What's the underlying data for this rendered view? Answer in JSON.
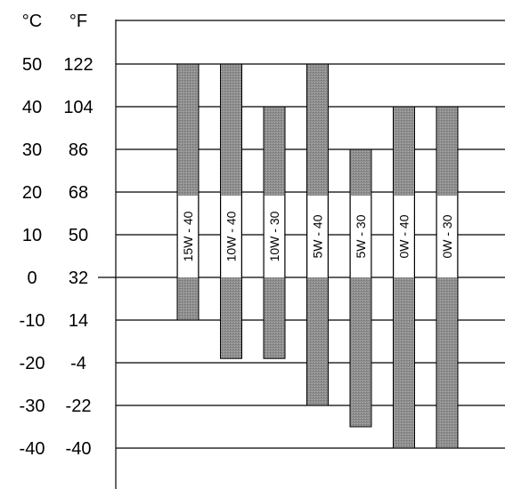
{
  "chart_data": {
    "type": "bar",
    "title": "",
    "xlabel": "",
    "ylabel": "",
    "units": {
      "celsius": "°C",
      "fahrenheit": "°F"
    },
    "ylim": [
      -50,
      60
    ],
    "y_ticks_c": [
      "50",
      "40",
      "30",
      "20",
      "10",
      "0",
      "-10",
      "-20",
      "-30",
      "-40"
    ],
    "y_ticks_f": [
      "122",
      "104",
      "86",
      "68",
      "50",
      "32",
      "14",
      "-4",
      "-22",
      "-40"
    ],
    "grid": "horizontal lines at each 10 °C",
    "categories": [
      "15W - 40",
      "10W - 40",
      "10W - 30",
      "5W - 40",
      "5W - 30",
      "0W - 40",
      "0W - 30"
    ],
    "series": [
      {
        "low": [
          -10,
          -19,
          -19,
          -30,
          -35,
          -40,
          -40
        ],
        "high": [
          50,
          50,
          40,
          50,
          30,
          40,
          40
        ]
      }
    ],
    "colors": {
      "bar_fill": "#8f8f8f",
      "label_background": "#ffffff",
      "grid": "#000000",
      "text": "#000000"
    }
  }
}
